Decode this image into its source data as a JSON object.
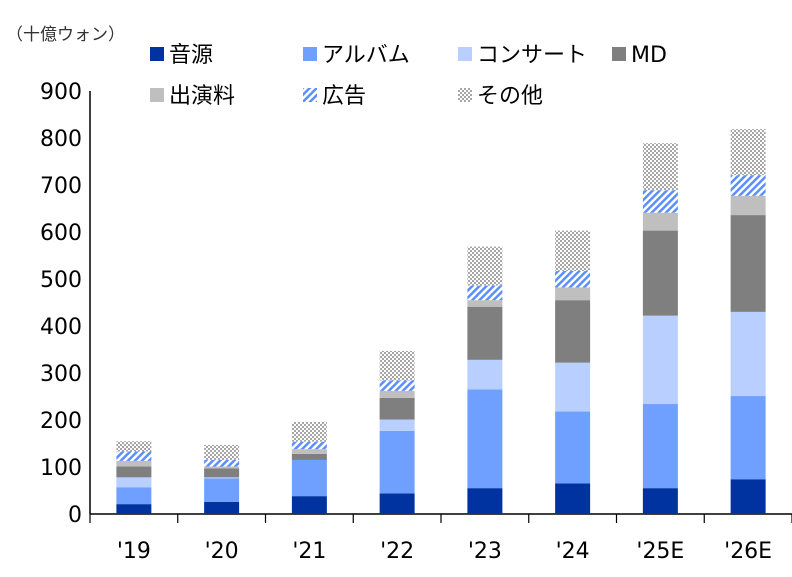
{
  "chart_data": {
    "type": "bar",
    "stacked": true,
    "unit_label": "（十億ウォン）",
    "categories": [
      "'19",
      "'20",
      "'21",
      "'22",
      "'23",
      "'24",
      "'25E",
      "'26E"
    ],
    "ylim": [
      0,
      900
    ],
    "yticks": [
      0,
      100,
      200,
      300,
      400,
      500,
      600,
      700,
      800,
      900
    ],
    "grid": false,
    "legend_position": "top",
    "series": [
      {
        "name": "音源",
        "color": "#0033A0",
        "fill": "solid",
        "values": [
          21,
          26,
          38,
          44,
          55,
          65,
          55,
          74
        ]
      },
      {
        "name": "アルバム",
        "color": "#70A0FF",
        "fill": "solid",
        "values": [
          36,
          50,
          77,
          133,
          210,
          153,
          179,
          177
        ]
      },
      {
        "name": "コンサート",
        "color": "#B8CFFF",
        "fill": "solid",
        "values": [
          21,
          2,
          0,
          24,
          63,
          104,
          188,
          179
        ]
      },
      {
        "name": "MD",
        "color": "#7F7F7F",
        "fill": "solid",
        "values": [
          23,
          19,
          13,
          46,
          113,
          133,
          181,
          206
        ]
      },
      {
        "name": "出演料",
        "color": "#BFBFBF",
        "fill": "solid",
        "values": [
          12,
          4,
          10,
          15,
          14,
          27,
          38,
          41
        ]
      },
      {
        "name": "広告",
        "color": "#5B8FFF",
        "fill": "diagonal",
        "values": [
          20,
          14,
          16,
          22,
          31,
          35,
          48,
          44
        ]
      },
      {
        "name": "その他",
        "color": "#A6A6A6",
        "fill": "crosshatch",
        "values": [
          22,
          32,
          42,
          63,
          83,
          86,
          100,
          98
        ]
      }
    ]
  }
}
